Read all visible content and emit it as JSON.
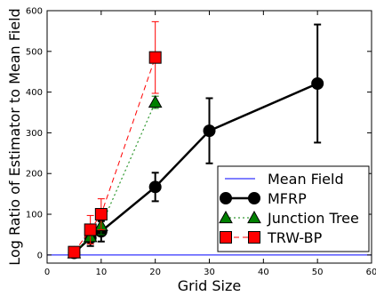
{
  "chart_data": {
    "type": "line",
    "title": "",
    "xlabel": "Grid Size",
    "ylabel": "Log Ratio of Estimator to Mean Field",
    "xlim": [
      0,
      60
    ],
    "ylim": [
      -20,
      600
    ],
    "xticks": [
      0,
      10,
      20,
      30,
      40,
      50,
      60
    ],
    "yticks": [
      0,
      100,
      200,
      300,
      400,
      500,
      600
    ],
    "xtick_labels": [
      "0",
      "10",
      "20",
      "30",
      "40",
      "50",
      "60"
    ],
    "ytick_labels": [
      "0",
      "100",
      "200",
      "300",
      "400",
      "500",
      "600"
    ],
    "grid": false,
    "legend_position": "lower-right",
    "series": [
      {
        "name": "Mean Field",
        "color": "#0000ff",
        "style": "solid",
        "marker": "none",
        "x": [
          0,
          60
        ],
        "y": [
          0,
          0
        ]
      },
      {
        "name": "MFRP",
        "color": "#000000",
        "style": "solid",
        "marker": "circle",
        "x": [
          5,
          8,
          10,
          20,
          30,
          50
        ],
        "y": [
          5,
          42,
          58,
          167,
          305,
          421
        ],
        "err": [
          3,
          20,
          25,
          35,
          80,
          145
        ]
      },
      {
        "name": "Junction Tree",
        "color": "#008000",
        "style": "dotted",
        "marker": "triangle",
        "x": [
          5,
          8,
          10,
          20
        ],
        "y": [
          5,
          45,
          72,
          375
        ],
        "err": [
          3,
          18,
          22,
          15
        ]
      },
      {
        "name": "TRW-BP",
        "color": "#ff0000",
        "style": "dashed",
        "marker": "square",
        "x": [
          5,
          8,
          10,
          20
        ],
        "y": [
          7,
          62,
          100,
          485
        ],
        "err": [
          3,
          35,
          38,
          88
        ]
      }
    ]
  }
}
